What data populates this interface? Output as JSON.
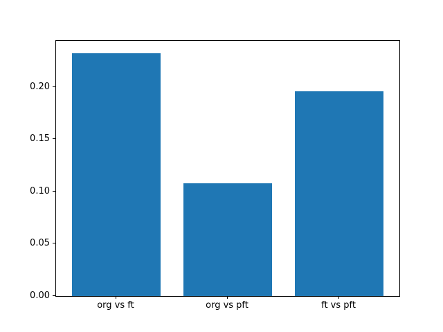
{
  "figure": {
    "background": "#ffffff",
    "frame_color": "#000000"
  },
  "chart_data": {
    "type": "bar",
    "title": "",
    "xlabel": "",
    "ylabel": "",
    "categories": [
      "org vs ft",
      "org vs pft",
      "ft vs pft"
    ],
    "values": [
      0.232,
      0.108,
      0.196
    ],
    "bar_color": "#1f77b4",
    "bar_width_fraction": 0.8,
    "ylim": [
      0,
      0.244
    ],
    "yticks": [
      0.0,
      0.05,
      0.1,
      0.15,
      0.2
    ],
    "ytick_labels": [
      "0.00",
      "0.05",
      "0.10",
      "0.15",
      "0.20"
    ],
    "grid": false,
    "legend_position": "none"
  }
}
